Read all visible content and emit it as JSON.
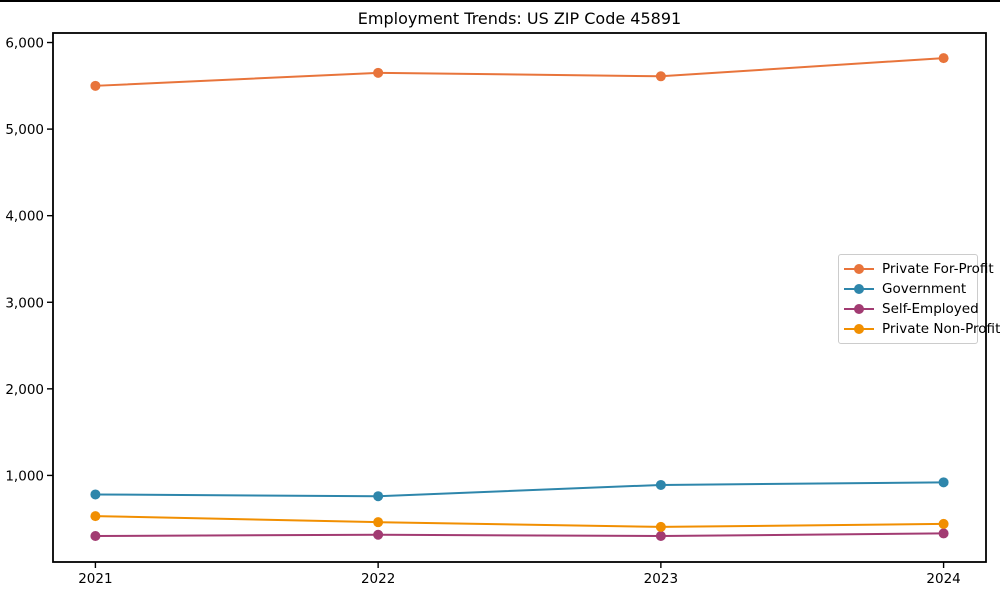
{
  "chart_data": {
    "type": "line",
    "title": "Employment Trends: US ZIP Code 45891",
    "x": [
      2021,
      2022,
      2023,
      2024
    ],
    "x_tick_labels": [
      "2021",
      "2022",
      "2023",
      "2024"
    ],
    "y_ticks": [
      1000,
      2000,
      3000,
      4000,
      5000,
      6000
    ],
    "y_tick_labels": [
      "1,000",
      "2,000",
      "3,000",
      "4,000",
      "5,000",
      "6,000"
    ],
    "series": [
      {
        "name": "Private For-Profit",
        "color": "#E8743B",
        "values": [
          5500,
          5650,
          5610,
          5820
        ]
      },
      {
        "name": "Government",
        "color": "#2E86AB",
        "values": [
          780,
          760,
          890,
          920
        ]
      },
      {
        "name": "Self-Employed",
        "color": "#A23B72",
        "values": [
          300,
          315,
          300,
          330
        ]
      },
      {
        "name": "Private Non-Profit",
        "color": "#F18F01",
        "values": [
          530,
          460,
          405,
          440
        ]
      }
    ],
    "xlabel": "",
    "ylabel": "",
    "xlim": [
      2020.85,
      2024.15
    ],
    "ylim": [
      0,
      6110
    ],
    "grid": false,
    "legend_position": "center-right",
    "marker": "circle",
    "line_width": 2,
    "marker_radius": 5,
    "background": "#ffffff",
    "axes_color": "#000000"
  }
}
